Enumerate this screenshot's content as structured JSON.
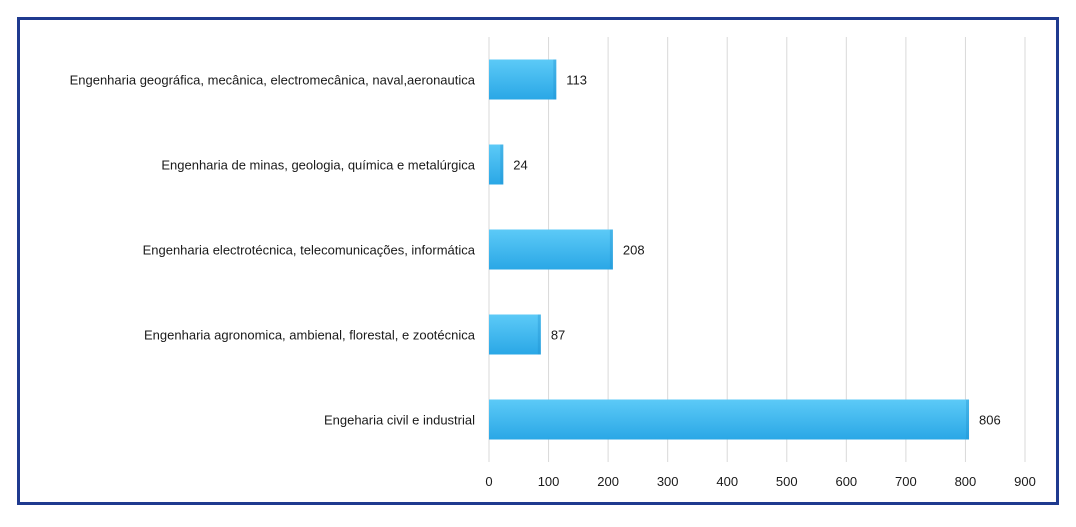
{
  "chart_data": {
    "type": "bar",
    "orientation": "horizontal",
    "categories": [
      "Engenharia geográfica, mecânica, electromecânica, naval,aeronautica",
      "Engenharia de minas, geologia, química e metalúrgica",
      "Engenharia electrotécnica, telecomunicações, informática",
      "Engenharia agronomica, ambienal, florestal, e zootécnica",
      "Engeharia civil e industrial"
    ],
    "values": [
      113,
      24,
      208,
      87,
      806
    ],
    "xlim": [
      0,
      900
    ],
    "xticks": [
      0,
      100,
      200,
      300,
      400,
      500,
      600,
      700,
      800,
      900
    ],
    "grid": true,
    "legend": "none",
    "bar_color": "#3ab6ef",
    "frame_color": "#1f3a8f",
    "grid_color": "#d9d9d9"
  }
}
